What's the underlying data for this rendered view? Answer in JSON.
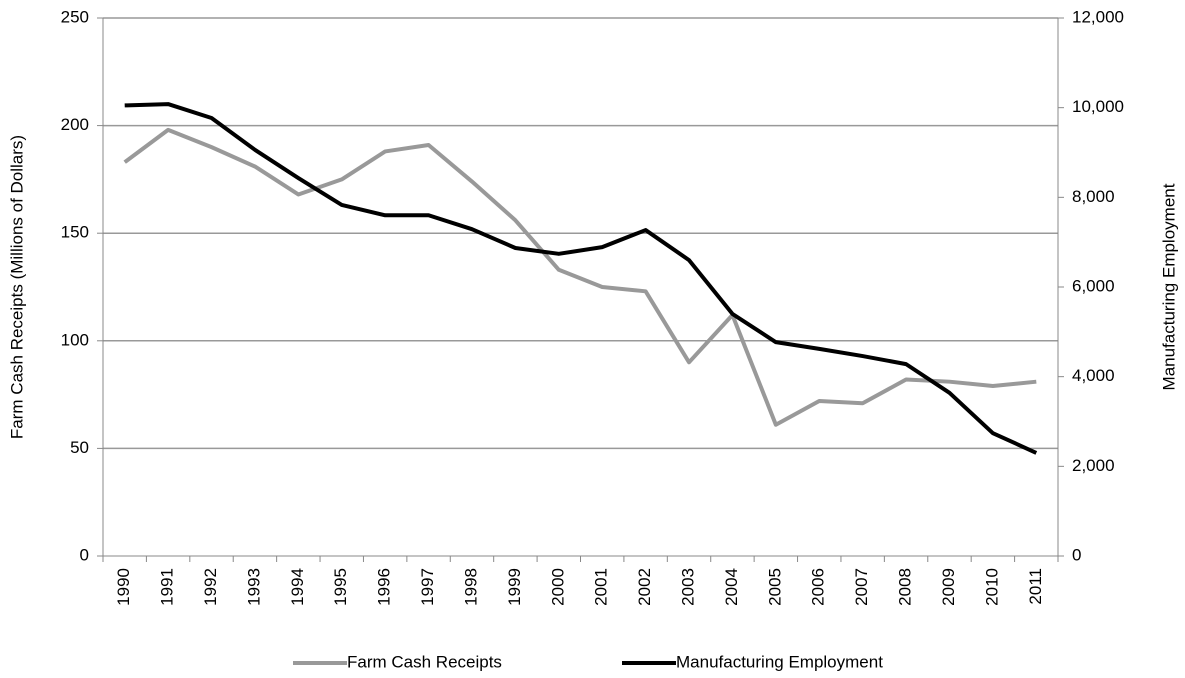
{
  "chart_data": {
    "type": "line",
    "y_label": "Farm Cash Receipts (Millions of Dollars)",
    "y2_label": "Manufacturing Employment",
    "categories": [
      "1990",
      "1991",
      "1992",
      "1993",
      "1994",
      "1995",
      "1996",
      "1997",
      "1998",
      "1999",
      "2000",
      "2001",
      "2002",
      "2003",
      "2004",
      "2005",
      "2006",
      "2007",
      "2008",
      "2009",
      "2010",
      "2011"
    ],
    "series": [
      {
        "name": "Farm Cash Receipts",
        "color": "#999999",
        "values": [
          183,
          198,
          190,
          181,
          168,
          175,
          188,
          191,
          174,
          156,
          133,
          125,
          123,
          90,
          112,
          61,
          72,
          71,
          82,
          81,
          79,
          81
        ]
      },
      {
        "name": "Manufacturing Employment",
        "color": "#000000",
        "axis": "y2",
        "values": [
          10050,
          10080,
          9770,
          9060,
          8430,
          7830,
          7600,
          7600,
          7290,
          6870,
          6740,
          6890,
          7270,
          6600,
          5400,
          4770,
          4620,
          4460,
          4280,
          3640,
          2740,
          2300
        ]
      }
    ],
    "ylim": [
      0,
      250
    ],
    "yticks": [
      0,
      50,
      100,
      150,
      200,
      250
    ],
    "y2lim": [
      0,
      12000
    ],
    "y2ticks": [
      0,
      {
        "value": 2000,
        "label": "2,000"
      },
      {
        "value": 4000,
        "label": "4,000"
      },
      {
        "value": 6000,
        "label": "6,000"
      },
      {
        "value": 8000,
        "label": "8,000"
      },
      {
        "value": 10000,
        "label": "10,000"
      },
      {
        "value": 12000,
        "label": "12,000"
      }
    ],
    "grid": true,
    "legend": "bottom"
  }
}
